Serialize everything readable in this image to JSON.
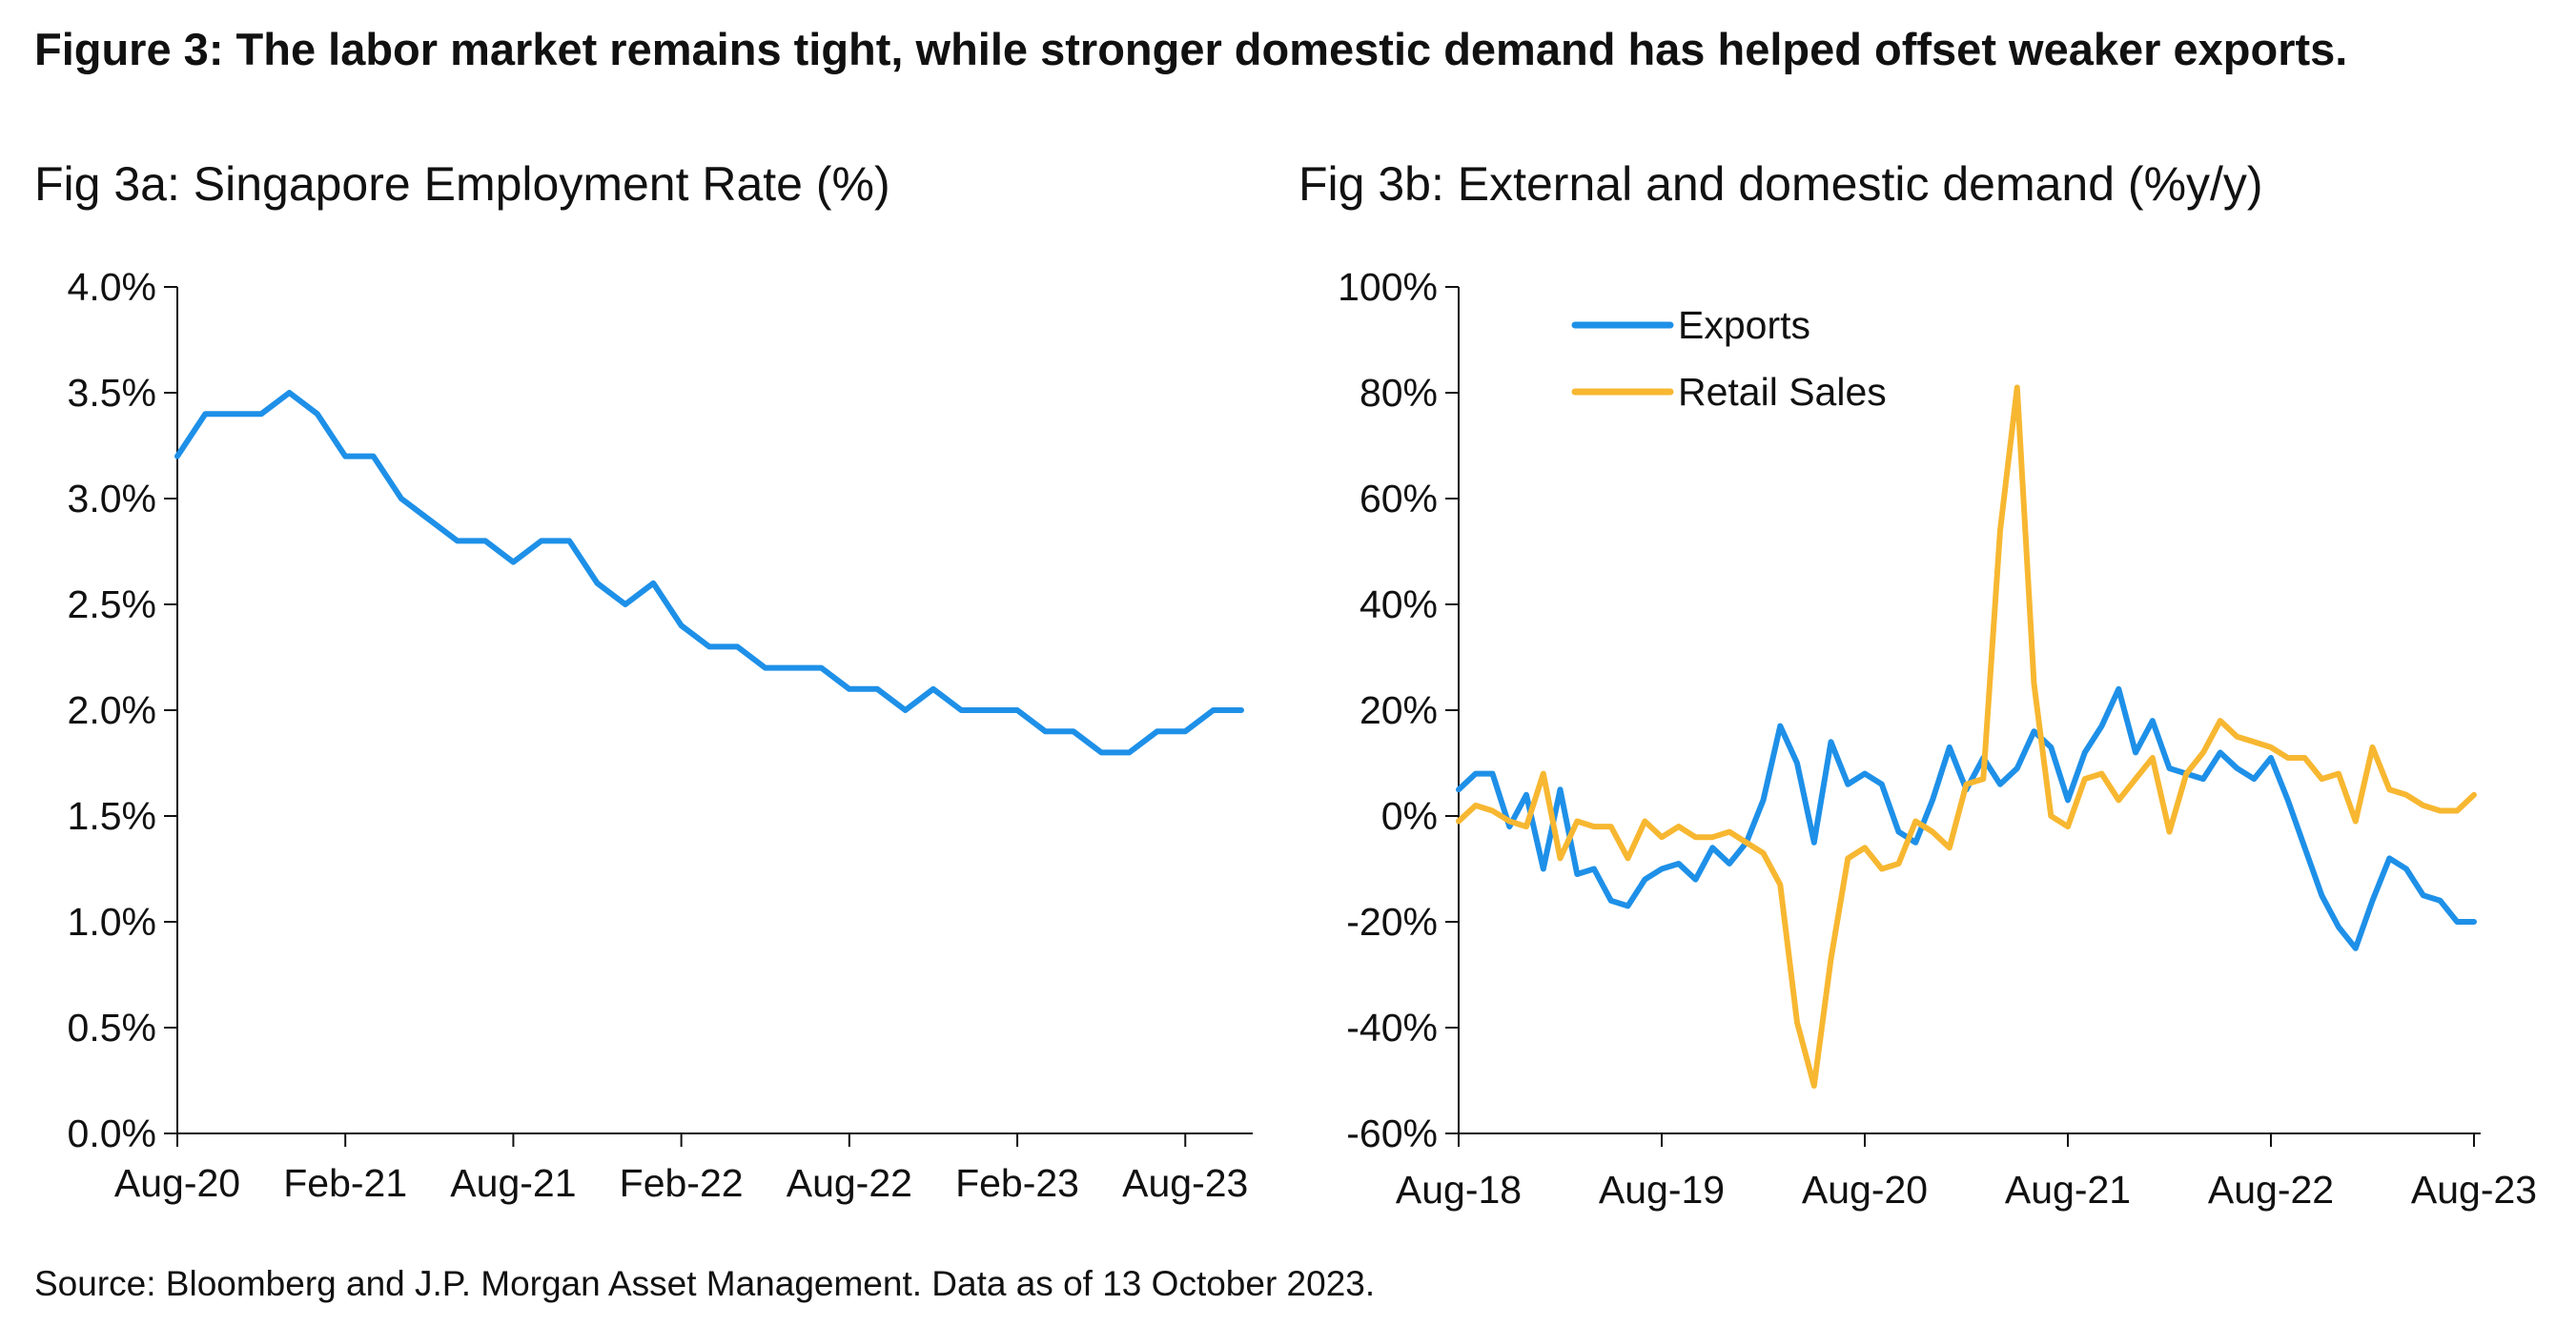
{
  "figure": {
    "title": "Figure 3: The labor market remains tight, while stronger domestic demand has helped offset weaker exports.",
    "source": "Source: Bloomberg and J.P. Morgan Asset Management. Data as of 13 October 2023."
  },
  "chart_data": [
    {
      "id": "fig3a",
      "type": "line",
      "title": "Fig 3a: Singapore Employment Rate (%)",
      "xlabel": "",
      "ylabel": "",
      "ylim": [
        0,
        4
      ],
      "y_ticks": [
        0,
        0.5,
        1,
        1.5,
        2,
        2.5,
        3,
        3.5,
        4
      ],
      "y_tick_labels": [
        "0.0%",
        "0.5%",
        "1.0%",
        "1.5%",
        "2.0%",
        "2.5%",
        "3.0%",
        "3.5%",
        "4.0%"
      ],
      "x_ticks": [
        "Aug-20",
        "Feb-21",
        "Aug-21",
        "Feb-22",
        "Aug-22",
        "Feb-23",
        "Aug-23"
      ],
      "x_tick_index": [
        0,
        6,
        12,
        18,
        24,
        30,
        36
      ],
      "grid": false,
      "legend": "none",
      "color": "#1E90E8",
      "series": [
        {
          "values": [
            3.2,
            3.4,
            3.4,
            3.4,
            3.5,
            3.4,
            3.2,
            3.2,
            3.0,
            2.9,
            2.8,
            2.8,
            2.7,
            2.8,
            2.8,
            2.6,
            2.5,
            2.6,
            2.4,
            2.3,
            2.3,
            2.2,
            2.2,
            2.2,
            2.1,
            2.1,
            2.0,
            2.1,
            2.0,
            2.0,
            2.0,
            1.9,
            1.9,
            1.8,
            1.8,
            1.9,
            1.9,
            2.0,
            2.0
          ]
        }
      ]
    },
    {
      "id": "fig3b",
      "type": "line",
      "title": "Fig 3b: External and domestic demand (%y/y)",
      "xlabel": "",
      "ylabel": "",
      "ylim": [
        -60,
        100
      ],
      "y_ticks": [
        -60,
        -40,
        -20,
        0,
        20,
        40,
        60,
        80,
        100
      ],
      "y_tick_labels": [
        "-60%",
        "-40%",
        "-20%",
        "0%",
        "20%",
        "40%",
        "60%",
        "80%",
        "100%"
      ],
      "x_ticks": [
        "Aug-18",
        "Aug-19",
        "Aug-20",
        "Aug-21",
        "Aug-22",
        "Aug-23"
      ],
      "x_tick_index": [
        0,
        12,
        24,
        36,
        48,
        60
      ],
      "grid": false,
      "legend": "top-left",
      "series": [
        {
          "name": "Exports",
          "color": "#1E90E8",
          "values": [
            5,
            8,
            8,
            -2,
            4,
            -10,
            5,
            -11,
            -10,
            -16,
            -17,
            -12,
            -10,
            -9,
            -12,
            -6,
            -9,
            -5,
            3,
            17,
            10,
            -5,
            14,
            6,
            8,
            6,
            -3,
            -5,
            3,
            13,
            5,
            11,
            6,
            9,
            16,
            13,
            3,
            12,
            17,
            24,
            12,
            18,
            9,
            8,
            7,
            12,
            9,
            7,
            11,
            3,
            -6,
            -15,
            -21,
            -25,
            -16,
            -8,
            -10,
            -15,
            -16,
            -20,
            -20
          ]
        },
        {
          "name": "Retail Sales",
          "color": "#F7B731",
          "values": [
            -1,
            2,
            1,
            -1,
            -2,
            8,
            -8,
            -1,
            -2,
            -2,
            -8,
            -1,
            -4,
            -2,
            -4,
            -4,
            -3,
            -5,
            -7,
            -13,
            -39,
            -51,
            -27,
            -8,
            -6,
            -10,
            -9,
            -1,
            -3,
            -6,
            6,
            7,
            54,
            81,
            25,
            0,
            -2,
            7,
            8,
            3,
            7,
            11,
            -3,
            8,
            12,
            18,
            15,
            14,
            13,
            11,
            11,
            7,
            8,
            -1,
            13,
            5,
            4,
            2,
            1,
            1,
            4
          ]
        }
      ]
    }
  ]
}
